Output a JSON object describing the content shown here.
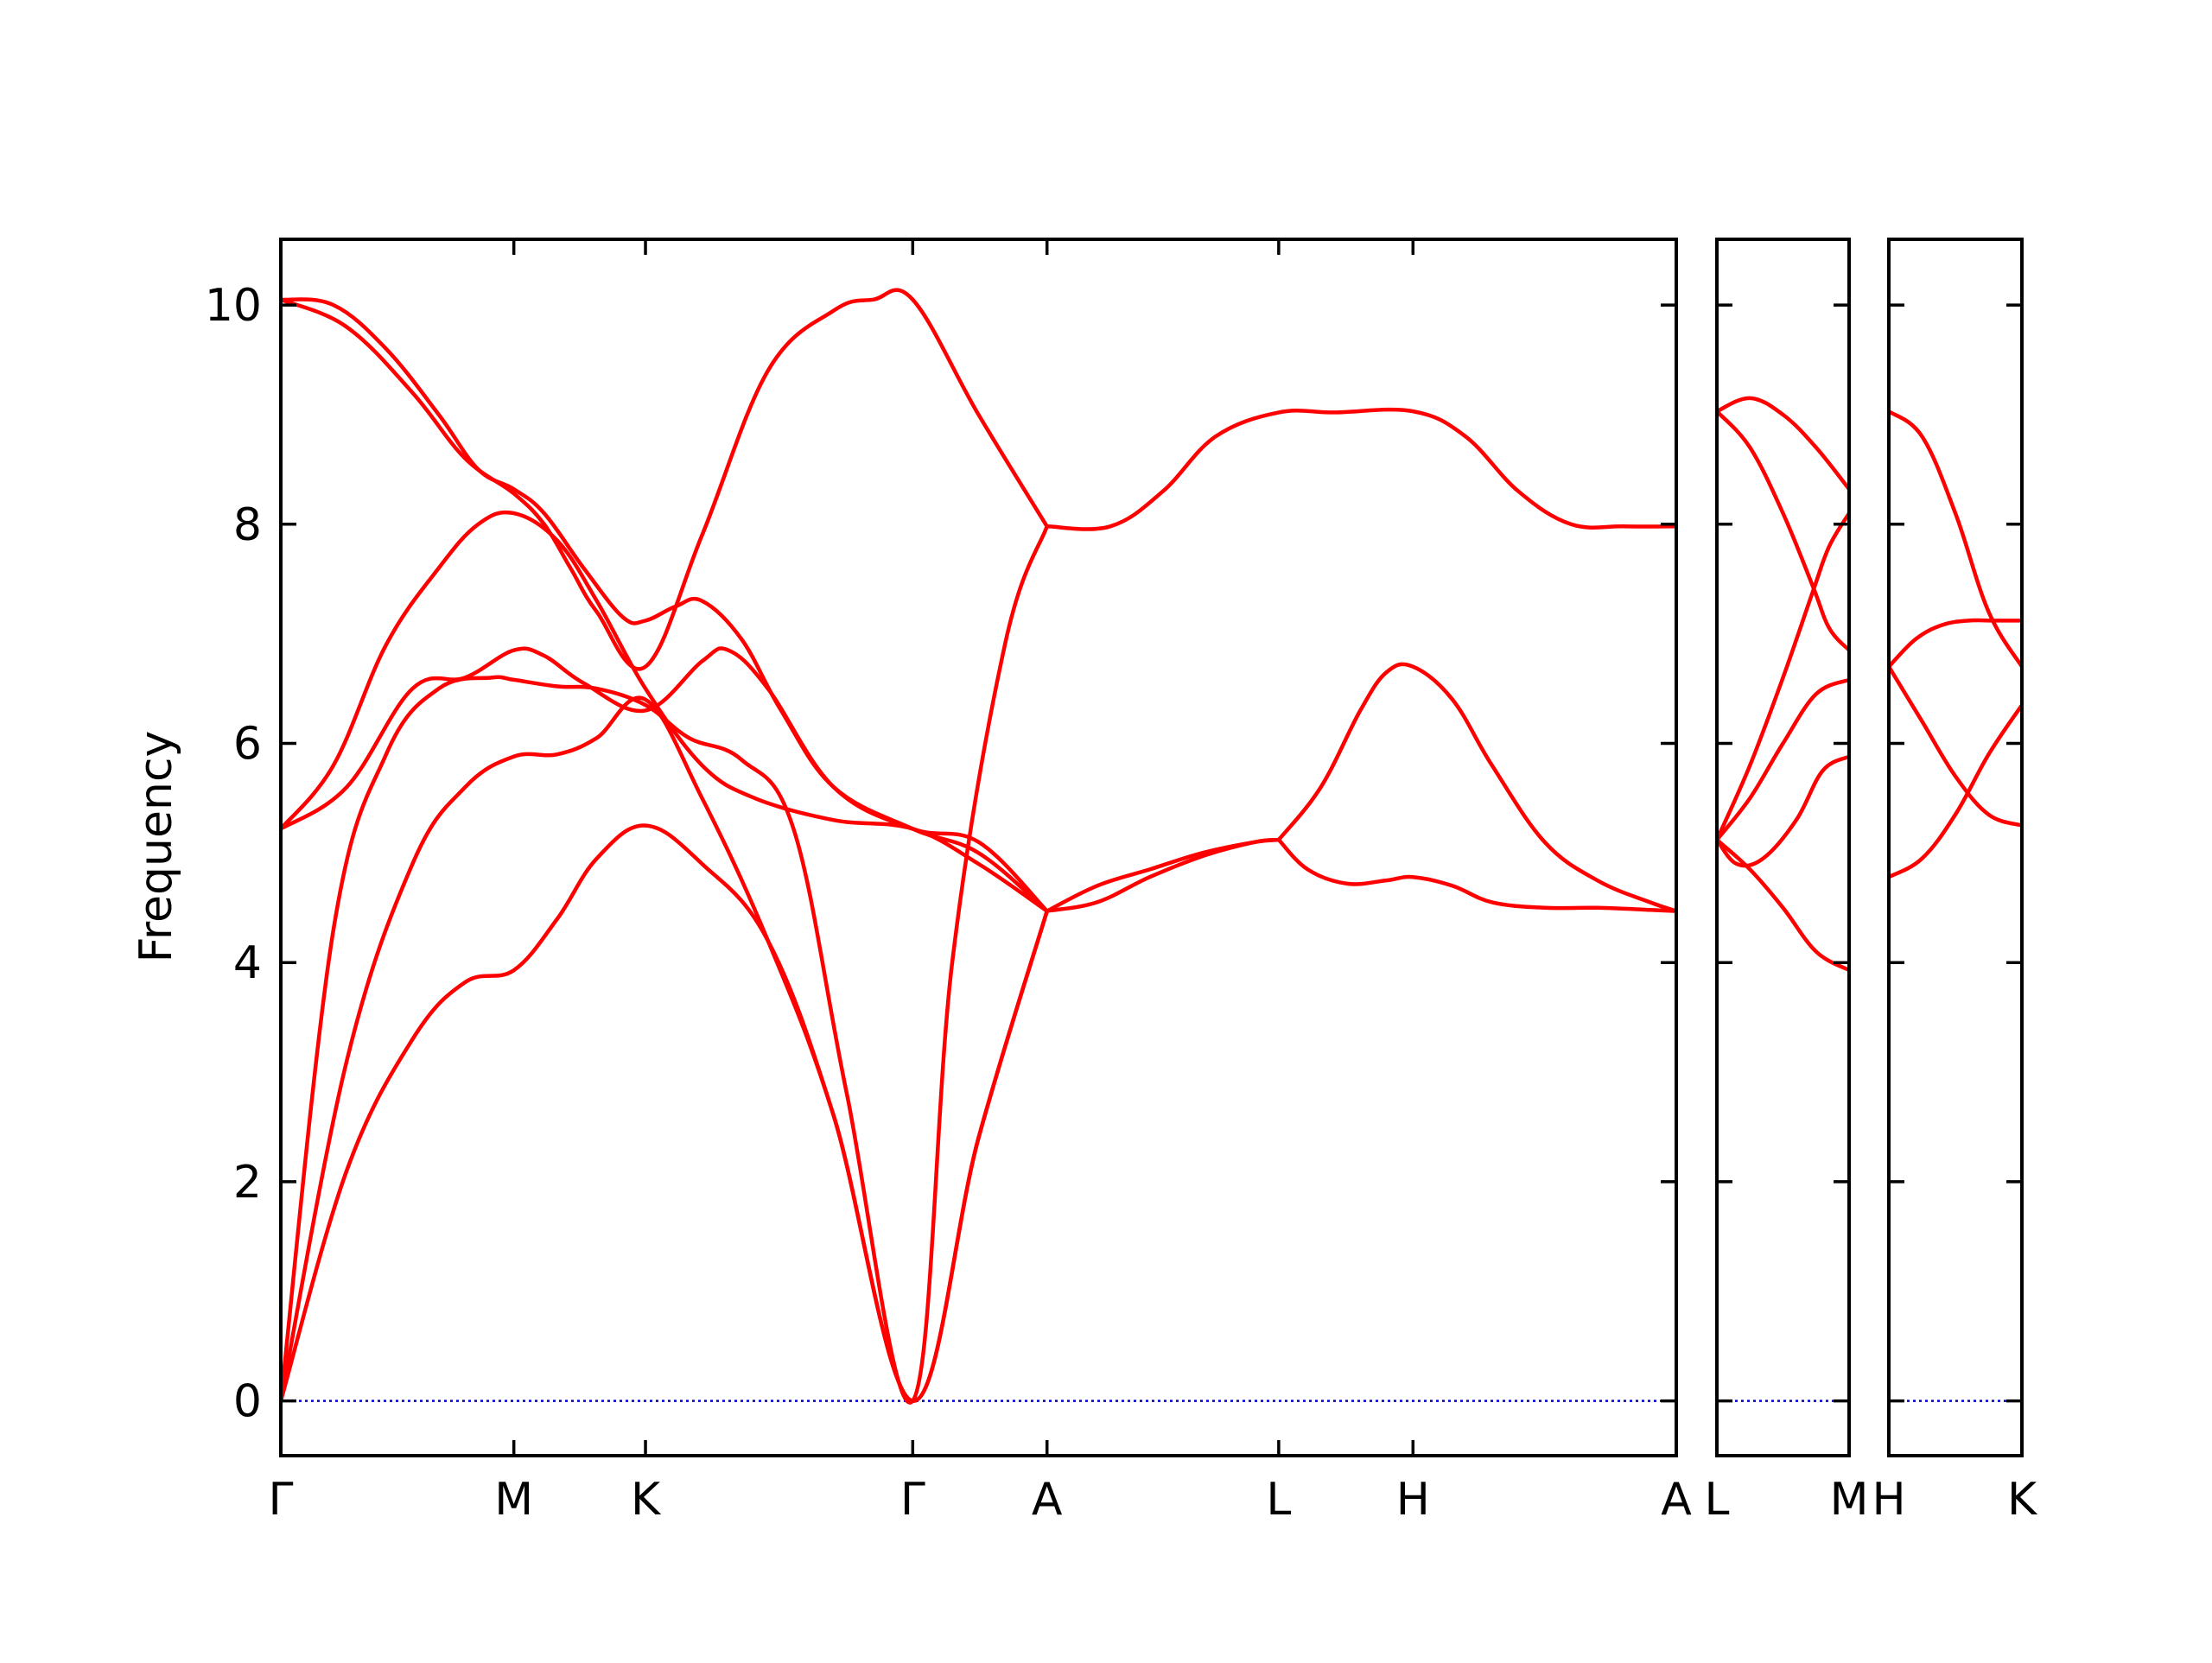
{
  "chart_data": {
    "type": "line",
    "title": "",
    "xlabel": "",
    "ylabel": "Frequency",
    "yticks": [
      "0",
      "2",
      "4",
      "6",
      "8",
      "10"
    ],
    "ylim": [
      -0.5,
      10.6
    ],
    "grid": false,
    "colors": {
      "bands": "#ff0000",
      "zero_line": "#0000cc",
      "frame": "#000000"
    },
    "panels": [
      {
        "xlim": [
          0,
          10.6
        ],
        "labels": [
          {
            "x": 0,
            "label": "Γ"
          },
          {
            "x": 1.77,
            "label": "M"
          },
          {
            "x": 2.77,
            "label": "K"
          },
          {
            "x": 4.8,
            "label": "Γ"
          },
          {
            "x": 5.82,
            "label": "A"
          },
          {
            "x": 7.58,
            "label": "L"
          },
          {
            "x": 8.6,
            "label": "H"
          },
          {
            "x": 10.6,
            "label": "A"
          }
        ],
        "series": [
          {
            "x": [
              0,
              0.5,
              1.0,
              1.4,
              1.77,
              2.1,
              2.4,
              2.77,
              3.2,
              3.7,
              4.2,
              4.8,
              5.3,
              5.82
            ],
            "values": [
              0,
              2.1,
              3.3,
              3.82,
              3.93,
              4.4,
              4.95,
              5.25,
              4.9,
              4.2,
              2.6,
              0,
              2.4,
              4.47
            ]
          },
          {
            "x": [
              0,
              0.5,
              1.0,
              1.4,
              1.77,
              2.1,
              2.4,
              2.77,
              3.2,
              3.7,
              4.2,
              4.8,
              5.3,
              5.82
            ],
            "values": [
              0,
              3.1,
              4.9,
              5.6,
              5.88,
              5.9,
              6.05,
              6.4,
              5.5,
              4.2,
              2.6,
              0,
              2.4,
              4.47
            ]
          },
          {
            "x": [
              0,
              0.4,
              0.8,
              1.2,
              1.6,
              1.77,
              2.1,
              2.4,
              2.77,
              3.1,
              3.5,
              3.9,
              4.3,
              4.8,
              5.1,
              5.5,
              5.82
            ],
            "values": [
              0,
              4.3,
              5.9,
              6.5,
              6.6,
              6.58,
              6.52,
              6.5,
              6.35,
              6.05,
              5.85,
              5.2,
              2.8,
              0,
              4.0,
              6.9,
              7.98
            ]
          },
          {
            "x": [
              0,
              0.5,
              1.0,
              1.4,
              1.77,
              2.0,
              2.3,
              2.77,
              3.2,
              3.4,
              3.7,
              4.2,
              4.8,
              5.3,
              5.82
            ],
            "values": [
              5.22,
              5.6,
              6.5,
              6.6,
              6.85,
              6.8,
              6.55,
              6.3,
              6.75,
              6.85,
              6.5,
              5.6,
              5.22,
              5.1,
              4.47
            ]
          },
          {
            "x": [
              0,
              0.4,
              0.8,
              1.2,
              1.5,
              1.77,
              2.1,
              2.4,
              2.77,
              3.2,
              3.6,
              4.2,
              4.8,
              5.3,
              5.82
            ],
            "values": [
              5.22,
              5.8,
              6.9,
              7.6,
              8.0,
              8.1,
              7.85,
              7.3,
              6.5,
              5.8,
              5.5,
              5.3,
              5.22,
              4.9,
              4.47
            ]
          },
          {
            "x": [
              0,
              0.4,
              0.8,
              1.2,
              1.5,
              1.77,
              2.0,
              2.3,
              2.6,
              2.77,
              3.0,
              3.2,
              3.5,
              3.8,
              4.2,
              4.8,
              5.3,
              5.82
            ],
            "values": [
              10.05,
              10.0,
              9.6,
              9.0,
              8.5,
              8.32,
              8.1,
              7.6,
              7.15,
              7.12,
              7.25,
              7.3,
              6.95,
              6.3,
              5.6,
              5.22,
              5.0,
              4.47
            ]
          },
          {
            "x": [
              0,
              0.5,
              1.0,
              1.4,
              1.77,
              2.0,
              2.2,
              2.4,
              2.77,
              3.2,
              3.7,
              4.2,
              4.5,
              4.8,
              5.3,
              5.82
            ],
            "values": [
              10.05,
              9.8,
              9.2,
              8.6,
              8.28,
              8.0,
              7.6,
              7.2,
              6.7,
              7.9,
              9.4,
              9.95,
              10.05,
              10.05,
              9.0,
              7.98
            ]
          },
          {
            "x": [
              5.82,
              6.2,
              6.6,
              7.0,
              7.4,
              7.58
            ],
            "values": [
              4.47,
              4.55,
              4.78,
              4.97,
              5.1,
              5.12
            ]
          },
          {
            "x": [
              5.82,
              6.2,
              6.6,
              7.0,
              7.4,
              7.58
            ],
            "values": [
              4.47,
              4.7,
              4.85,
              5.0,
              5.1,
              5.12
            ]
          },
          {
            "x": [
              5.82,
              6.3,
              6.7,
              7.1,
              7.58,
              8.0,
              8.6,
              9.0,
              9.4,
              9.8,
              10.2,
              10.6
            ],
            "values": [
              7.98,
              7.98,
              8.3,
              8.8,
              9.02,
              9.02,
              9.03,
              8.8,
              8.3,
              8.0,
              7.98,
              7.98
            ]
          },
          {
            "x": [
              7.58,
              7.8,
              8.1,
              8.4,
              8.6,
              8.9,
              9.2,
              9.6,
              10.0,
              10.4,
              10.6
            ],
            "values": [
              5.12,
              4.85,
              4.72,
              4.75,
              4.78,
              4.7,
              4.55,
              4.5,
              4.5,
              4.48,
              4.47
            ]
          },
          {
            "x": [
              7.58,
              7.9,
              8.2,
              8.4,
              8.6,
              8.9,
              9.2,
              9.6,
              10.0,
              10.4,
              10.6
            ],
            "values": [
              5.12,
              5.6,
              6.3,
              6.65,
              6.7,
              6.4,
              5.8,
              5.1,
              4.75,
              4.55,
              4.47
            ]
          }
        ]
      },
      {
        "xlim": [
          0,
          1
        ],
        "labels": [
          {
            "x": 0,
            "label": "L"
          },
          {
            "x": 1,
            "label": "M"
          }
        ],
        "series": [
          {
            "x": [
              0,
              0.25,
              0.5,
              0.75,
              1
            ],
            "values": [
              5.12,
              4.85,
              4.5,
              4.1,
              3.93
            ]
          },
          {
            "x": [
              0,
              0.15,
              0.35,
              0.6,
              0.8,
              1
            ],
            "values": [
              5.12,
              4.9,
              4.95,
              5.3,
              5.75,
              5.88
            ]
          },
          {
            "x": [
              0,
              0.25,
              0.5,
              0.75,
              1
            ],
            "values": [
              5.12,
              5.5,
              6.0,
              6.45,
              6.58
            ]
          },
          {
            "x": [
              0,
              0.25,
              0.5,
              0.73,
              0.85,
              1
            ],
            "values": [
              5.12,
              5.8,
              6.6,
              7.4,
              7.8,
              8.1
            ]
          },
          {
            "x": [
              0,
              0.25,
              0.5,
              0.73,
              0.85,
              1
            ],
            "values": [
              9.03,
              8.7,
              8.1,
              7.42,
              7.05,
              6.85
            ]
          },
          {
            "x": [
              0,
              0.25,
              0.5,
              0.75,
              1
            ],
            "values": [
              9.03,
              9.15,
              9.0,
              8.7,
              8.32
            ]
          }
        ]
      },
      {
        "xlim": [
          0,
          1
        ],
        "labels": [
          {
            "x": 0,
            "label": "H"
          },
          {
            "x": 1,
            "label": "K"
          }
        ],
        "series": [
          {
            "x": [
              0,
              0.25,
              0.5,
              0.75,
              1
            ],
            "values": [
              9.03,
              8.8,
              8.1,
              7.2,
              6.7
            ]
          },
          {
            "x": [
              0,
              0.2,
              0.4,
              0.6,
              0.8,
              1
            ],
            "values": [
              6.7,
              6.95,
              7.08,
              7.12,
              7.12,
              7.12
            ]
          },
          {
            "x": [
              0,
              0.25,
              0.5,
              0.75,
              1
            ],
            "values": [
              6.7,
              6.2,
              5.7,
              5.35,
              5.25
            ]
          },
          {
            "x": [
              0,
              0.25,
              0.5,
              0.75,
              1
            ],
            "values": [
              4.78,
              4.95,
              5.35,
              5.9,
              6.35
            ]
          }
        ]
      }
    ]
  }
}
